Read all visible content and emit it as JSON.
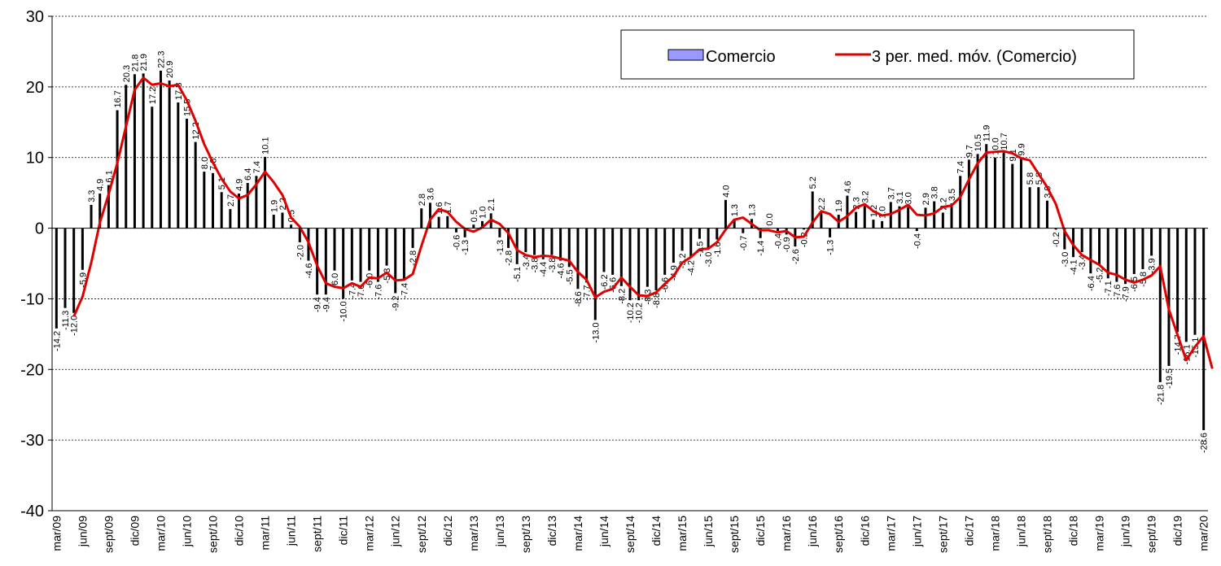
{
  "chart_data": {
    "type": "bar",
    "series": [
      {
        "name": "Comercio",
        "kind": "bar",
        "color": "#9999ff",
        "values": [
          -14.2,
          -11.3,
          -12.0,
          -5.9,
          3.3,
          4.9,
          6.1,
          16.7,
          20.3,
          21.8,
          21.9,
          17.2,
          22.3,
          20.9,
          17.8,
          15.5,
          12.2,
          8.0,
          7.8,
          5.1,
          2.7,
          4.9,
          6.4,
          7.4,
          10.1,
          1.9,
          2.2,
          0.5,
          -2.0,
          -4.6,
          -9.4,
          -9.4,
          -6.0,
          -10.0,
          -7.4,
          -7.6,
          -6.0,
          -7.6,
          -5.3,
          -9.2,
          -7.4,
          -2.8,
          2.8,
          3.6,
          1.6,
          1.7,
          -0.6,
          -1.3,
          0.5,
          1.0,
          2.1,
          -1.3,
          -2.8,
          -5.1,
          -3.4,
          -3.8,
          -4.4,
          -3.8,
          -4.6,
          -5.5,
          -8.6,
          -7.7,
          -13.0,
          -6.2,
          -6.6,
          -8.2,
          -10.2,
          -10.2,
          -8.3,
          -8.8,
          -6.6,
          -4.9,
          -3.2,
          -4.2,
          -1.5,
          -3.0,
          -1.6,
          4.0,
          1.3,
          -0.7,
          1.3,
          -1.4,
          0.0,
          -0.4,
          -0.9,
          -2.6,
          -0.2,
          5.2,
          2.2,
          -1.3,
          1.9,
          4.6,
          2.3,
          3.2,
          1.2,
          1.0,
          3.7,
          3.1,
          3.0,
          -0.4,
          2.9,
          3.8,
          2.2,
          3.5,
          7.4,
          9.7,
          10.5,
          11.9,
          10.0,
          10.7,
          9.1,
          9.9,
          5.8,
          5.8,
          3.9,
          -0.2,
          -3.0,
          -4.1,
          -3.4,
          -6.4,
          -5.2,
          -7.1,
          -7.6,
          -7.9,
          -6.5,
          -5.8,
          -3.9,
          -21.8,
          -19.5,
          -14.7,
          -16.1,
          -15.1,
          -28.6
        ]
      },
      {
        "name": "3 per. med. móv. (Comercio)",
        "kind": "line",
        "color": "#e00000",
        "values": [
          null,
          null,
          -12.5,
          -9.7,
          -4.9,
          0.8,
          4.8,
          9.2,
          14.4,
          19.6,
          21.3,
          20.3,
          20.5,
          20.1,
          20.3,
          18.1,
          15.2,
          11.9,
          9.3,
          7.0,
          5.2,
          4.2,
          4.7,
          6.2,
          8.0,
          6.5,
          4.7,
          1.5,
          0.2,
          -2.0,
          -5.3,
          -7.8,
          -8.3,
          -8.5,
          -7.8,
          -8.3,
          -7.0,
          -7.1,
          -6.3,
          -7.4,
          -7.3,
          -6.5,
          -2.5,
          1.2,
          2.7,
          2.3,
          0.9,
          -0.1,
          -0.5,
          0.1,
          1.2,
          0.6,
          -0.7,
          -3.1,
          -3.8,
          -4.1,
          -3.9,
          -4.0,
          -4.3,
          -4.6,
          -6.2,
          -7.3,
          -9.8,
          -9.0,
          -8.6,
          -7.0,
          -8.3,
          -9.5,
          -9.6,
          -9.1,
          -7.9,
          -6.8,
          -4.9,
          -4.1,
          -3.0,
          -2.9,
          -2.0,
          -0.2,
          1.2,
          1.5,
          0.6,
          -0.3,
          -0.3,
          -0.6,
          -0.4,
          -1.3,
          -1.2,
          0.8,
          2.4,
          2.0,
          0.9,
          1.7,
          2.9,
          3.4,
          2.4,
          1.8,
          2.0,
          2.6,
          3.3,
          1.9,
          1.8,
          2.1,
          3.0,
          3.2,
          4.4,
          6.9,
          9.2,
          10.7,
          10.8,
          10.9,
          10.6,
          9.9,
          9.6,
          7.7,
          5.8,
          3.4,
          -0.4,
          -2.4,
          -3.8,
          -4.5,
          -5.2,
          -6.3,
          -6.6,
          -7.3,
          -7.7,
          -7.3,
          -6.7,
          -5.4,
          -11.5,
          -15.1,
          -18.7,
          -16.8,
          -15.3,
          -19.9
        ]
      }
    ],
    "x_tick_labels": [
      "mar/09",
      "jun/09",
      "sept/09",
      "dic/09",
      "mar/10",
      "jun/10",
      "sept/10",
      "dic/10",
      "mar/11",
      "jun/11",
      "sept/11",
      "dic/11",
      "mar/12",
      "jun/12",
      "sept/12",
      "dic/12",
      "mar/13",
      "jun/13",
      "sept/13",
      "dic/13",
      "mar/14",
      "jun/14",
      "sept/14",
      "dic/14",
      "mar/15",
      "jun/15",
      "sept/15",
      "dic/15",
      "mar/16",
      "jun/16",
      "sept/16",
      "dic/16",
      "mar/17",
      "jun/17",
      "sept/17",
      "dic/17",
      "mar/18",
      "jun/18",
      "sept/18",
      "dic/18",
      "mar/19",
      "jun/19",
      "sept/19",
      "dic/19",
      "mar/20"
    ],
    "y_ticks": [
      -40,
      -30,
      -20,
      -10,
      0,
      10,
      20,
      30
    ],
    "ylim": [
      -40,
      30
    ],
    "grid": "horizontal dashed",
    "legend_position": "top-right",
    "data_labels": true,
    "title": "",
    "xlabel": "",
    "ylabel": ""
  }
}
